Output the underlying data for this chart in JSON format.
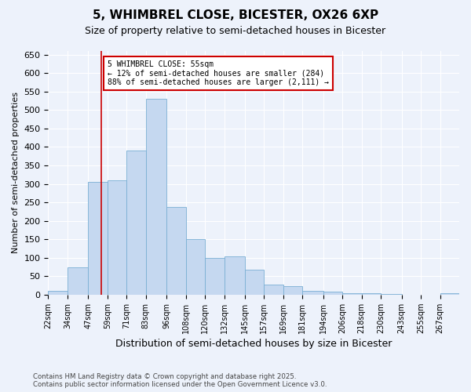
{
  "title": "5, WHIMBREL CLOSE, BICESTER, OX26 6XP",
  "subtitle": "Size of property relative to semi-detached houses in Bicester",
  "xlabel": "Distribution of semi-detached houses by size in Bicester",
  "ylabel": "Number of semi-detached properties",
  "property_size": 55,
  "annotation_title": "5 WHIMBREL CLOSE: 55sqm",
  "annotation_line1": "← 12% of semi-detached houses are smaller (284)",
  "annotation_line2": "88% of semi-detached houses are larger (2,111) →",
  "footer_line1": "Contains HM Land Registry data © Crown copyright and database right 2025.",
  "footer_line2": "Contains public sector information licensed under the Open Government Licence v3.0.",
  "bar_color": "#c5d8f0",
  "bar_edge_color": "#7aafd4",
  "annotation_box_color": "#cc0000",
  "vline_color": "#cc0000",
  "background_color": "#edf2fb",
  "grid_color": "#ffffff",
  "bins": [
    22,
    34,
    47,
    59,
    71,
    83,
    96,
    108,
    120,
    132,
    145,
    157,
    169,
    181,
    194,
    206,
    218,
    230,
    243,
    255,
    267
  ],
  "counts": [
    10,
    75,
    305,
    310,
    390,
    530,
    238,
    150,
    100,
    103,
    68,
    28,
    22,
    10,
    8,
    4,
    3,
    2,
    0,
    0,
    4
  ],
  "ylim": [
    0,
    660
  ],
  "yticks": [
    0,
    50,
    100,
    150,
    200,
    250,
    300,
    350,
    400,
    450,
    500,
    550,
    600,
    650
  ]
}
